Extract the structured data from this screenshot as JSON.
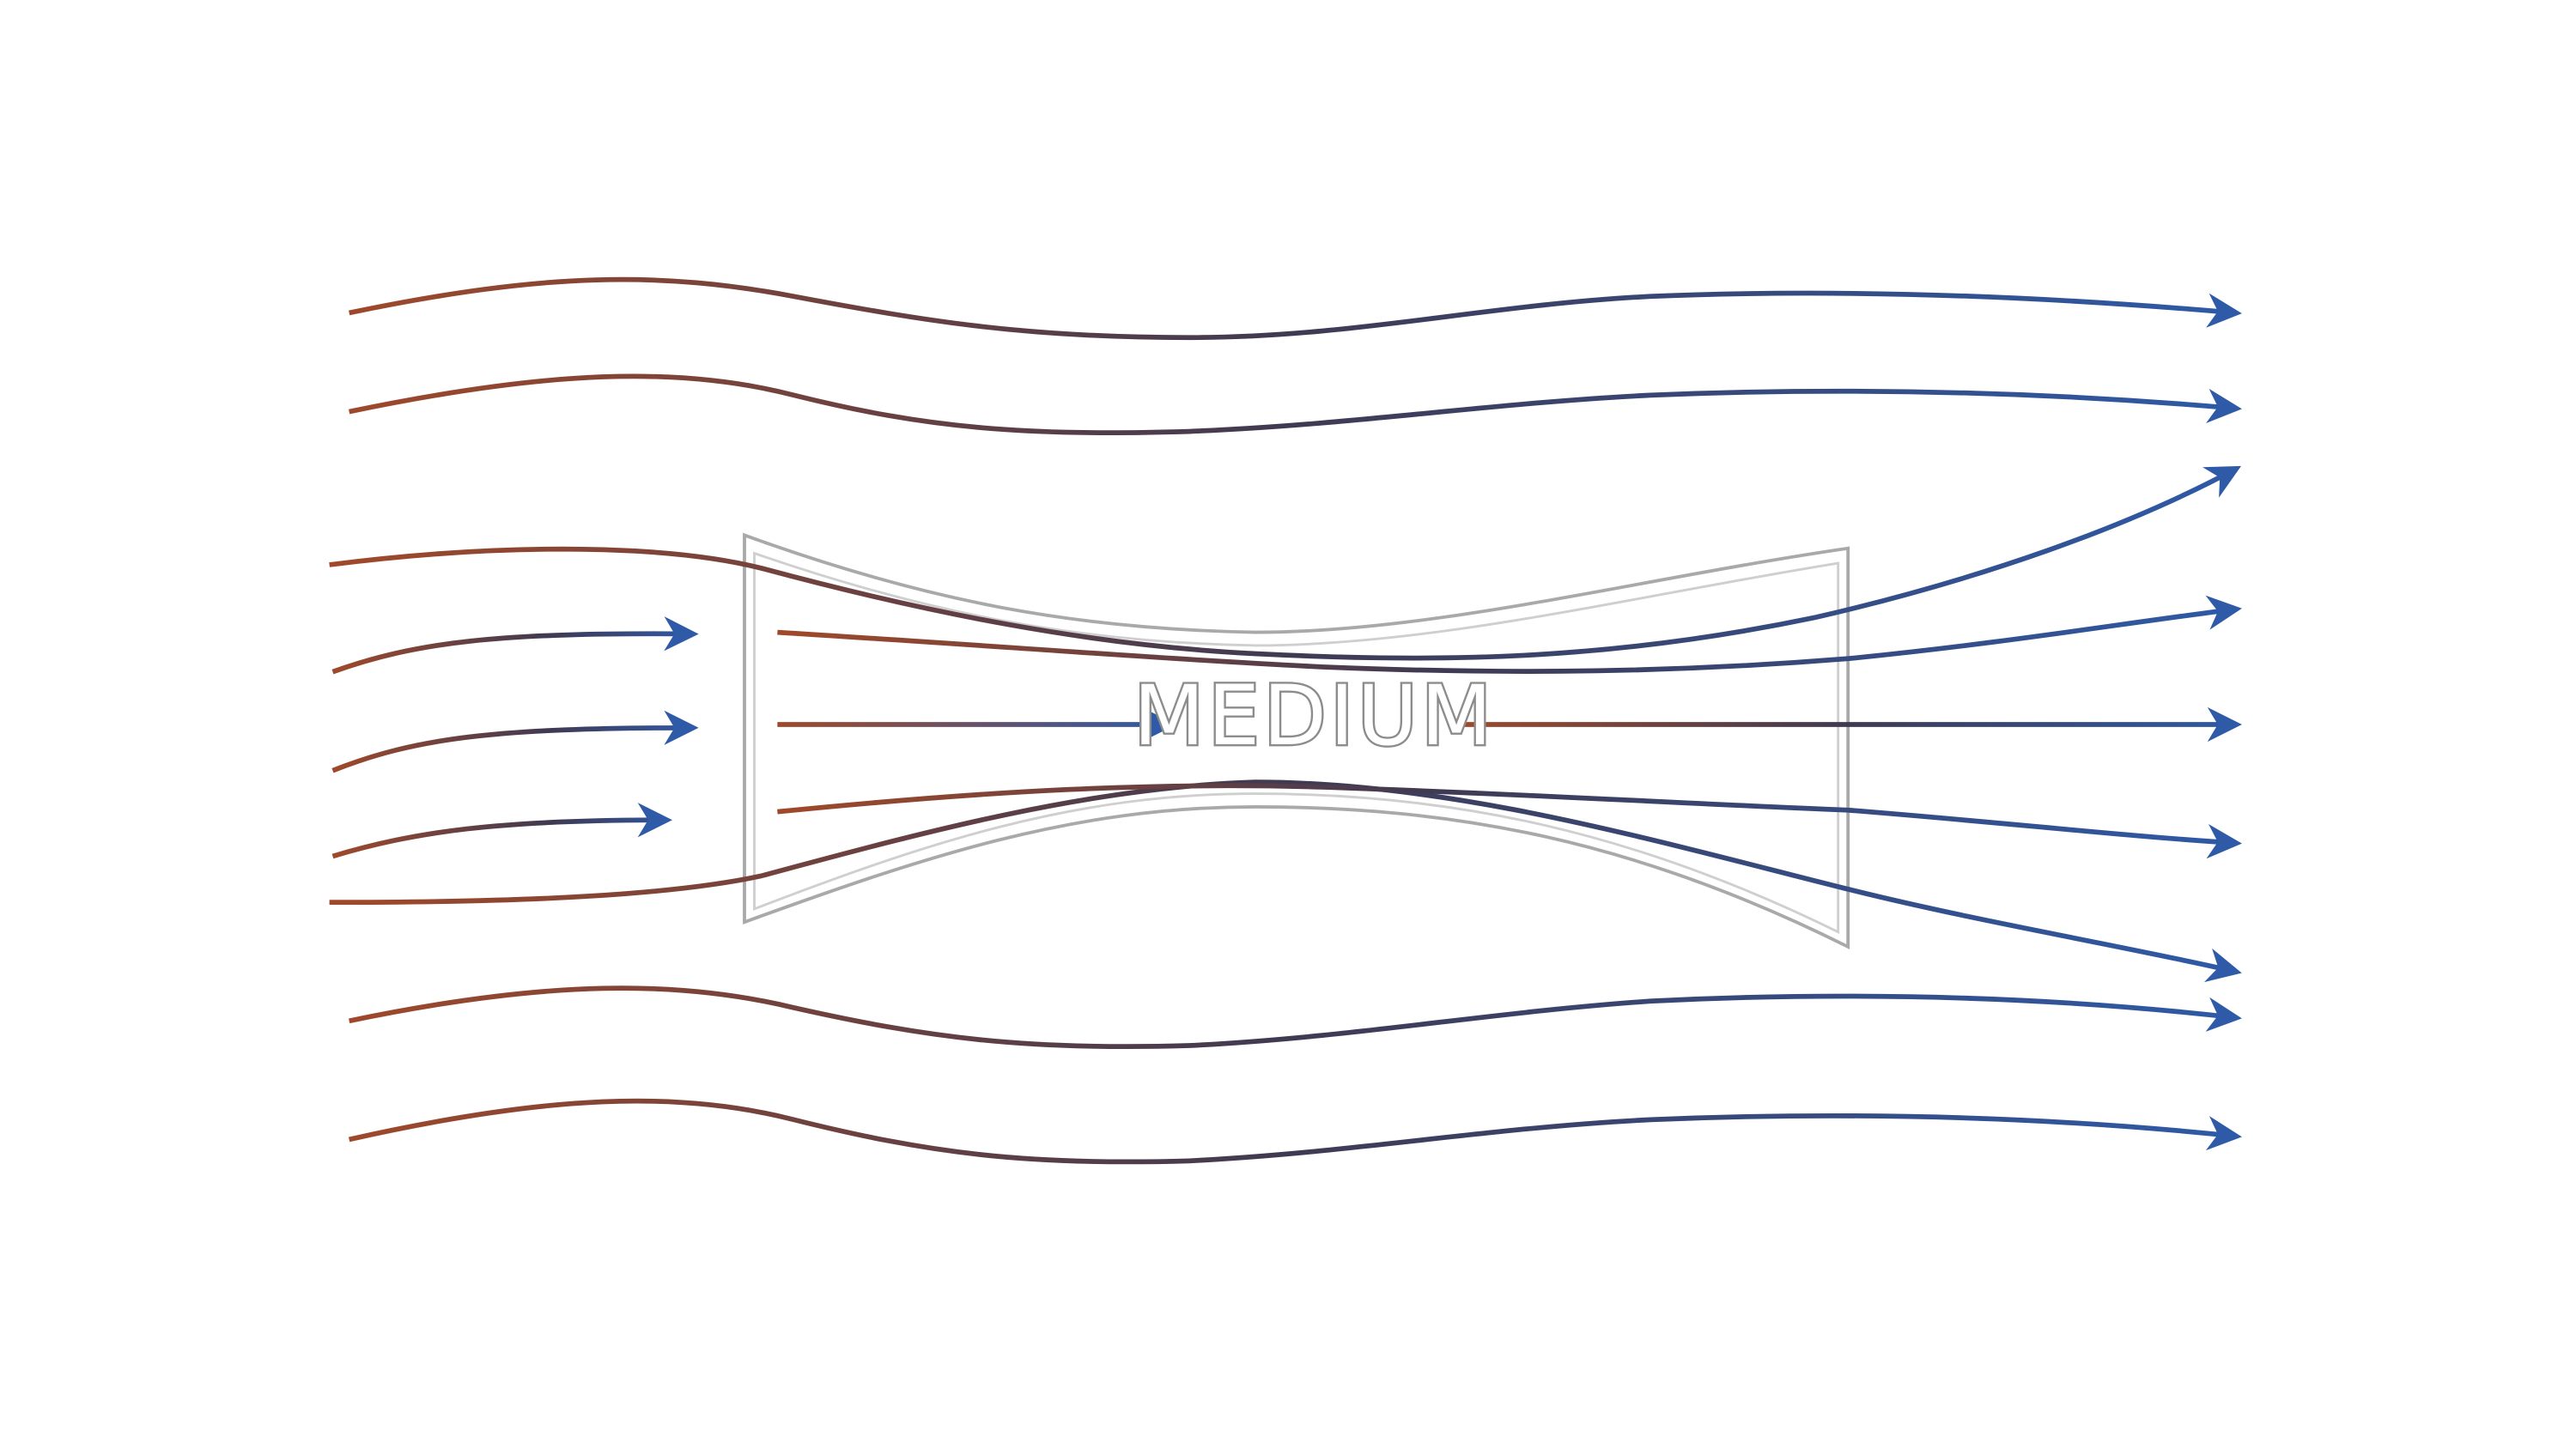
{
  "diagram": {
    "label": "MEDIUM"
  },
  "colors": {
    "flow_start": "#a0492a",
    "flow_mid": "#3f3a52",
    "flow_end": "#2e5aa8",
    "arrow_head": "#2e5aa8",
    "medium_outline": "#a9a9a9",
    "label_stroke": "#8c8c8c"
  }
}
